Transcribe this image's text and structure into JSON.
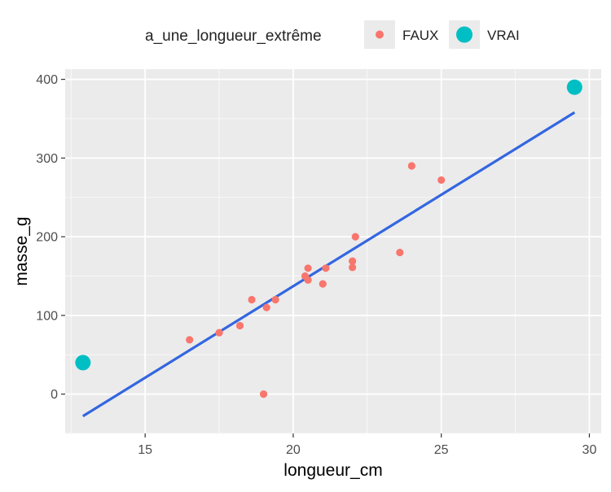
{
  "chart_data": {
    "type": "scatter",
    "xlabel": "longueur_cm",
    "ylabel": "masse_g",
    "xlim": [
      12.3,
      30.4
    ],
    "ylim": [
      -50,
      413
    ],
    "x_ticks": [
      15,
      20,
      25,
      30
    ],
    "y_ticks": [
      0,
      100,
      200,
      300,
      400
    ],
    "grid": true,
    "legend": {
      "title": "a_une_longueur_extrême",
      "placement": "top",
      "entries": [
        {
          "label": "FAUX",
          "color": "#F8766D"
        },
        {
          "label": "VRAI",
          "color": "#00BFC4"
        }
      ]
    },
    "series": [
      {
        "name": "FAUX",
        "color": "#F8766D",
        "points": [
          {
            "x": 16.5,
            "y": 69
          },
          {
            "x": 17.5,
            "y": 78
          },
          {
            "x": 18.2,
            "y": 87
          },
          {
            "x": 18.6,
            "y": 120
          },
          {
            "x": 19.0,
            "y": 0
          },
          {
            "x": 19.1,
            "y": 110
          },
          {
            "x": 19.4,
            "y": 120
          },
          {
            "x": 20.4,
            "y": 150
          },
          {
            "x": 20.5,
            "y": 145
          },
          {
            "x": 20.5,
            "y": 160
          },
          {
            "x": 21.0,
            "y": 140
          },
          {
            "x": 21.1,
            "y": 160
          },
          {
            "x": 22.0,
            "y": 169
          },
          {
            "x": 22.0,
            "y": 161
          },
          {
            "x": 22.1,
            "y": 200
          },
          {
            "x": 23.6,
            "y": 180
          },
          {
            "x": 24.0,
            "y": 290
          },
          {
            "x": 25.0,
            "y": 272
          }
        ]
      },
      {
        "name": "VRAI",
        "color": "#00BFC4",
        "points": [
          {
            "x": 12.9,
            "y": 40
          },
          {
            "x": 29.5,
            "y": 390
          }
        ]
      }
    ],
    "trend_line": {
      "color": "#3366E0",
      "points": [
        {
          "x": 12.9,
          "y": -28
        },
        {
          "x": 29.5,
          "y": 358
        }
      ]
    }
  }
}
